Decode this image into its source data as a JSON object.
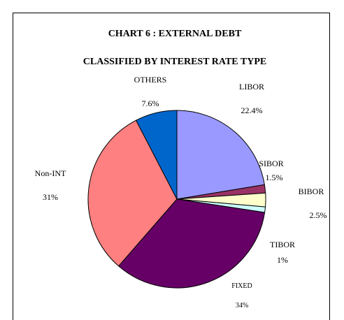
{
  "chart_data": {
    "type": "pie",
    "title": "CHART 6 : EXTERNAL DEBT",
    "subtitle": "CLASSIFIED BY INTEREST RATE TYPE",
    "slices": [
      {
        "name": "LIBOR",
        "value": 22.4,
        "value_label": "22.4%",
        "color": "#9999ff"
      },
      {
        "name": "SIBOR",
        "value": 1.5,
        "value_label": "1.5%",
        "color": "#993366"
      },
      {
        "name": "BIBOR",
        "value": 2.5,
        "value_label": "2.5%",
        "color": "#ffffcc"
      },
      {
        "name": "TIBOR",
        "value": 1,
        "value_label": "1%",
        "color": "#ccffff"
      },
      {
        "name": "FIXED",
        "value": 34,
        "value_label": "34%",
        "color": "#660066"
      },
      {
        "name": "Non-INT",
        "value": 31,
        "value_label": "31%",
        "color": "#ff8080"
      },
      {
        "name": "OTHERS",
        "value": 7.6,
        "value_label": "7.6%",
        "color": "#0066cc"
      }
    ],
    "start_angle_deg": 0,
    "direction": "clockwise",
    "legend": "none"
  }
}
